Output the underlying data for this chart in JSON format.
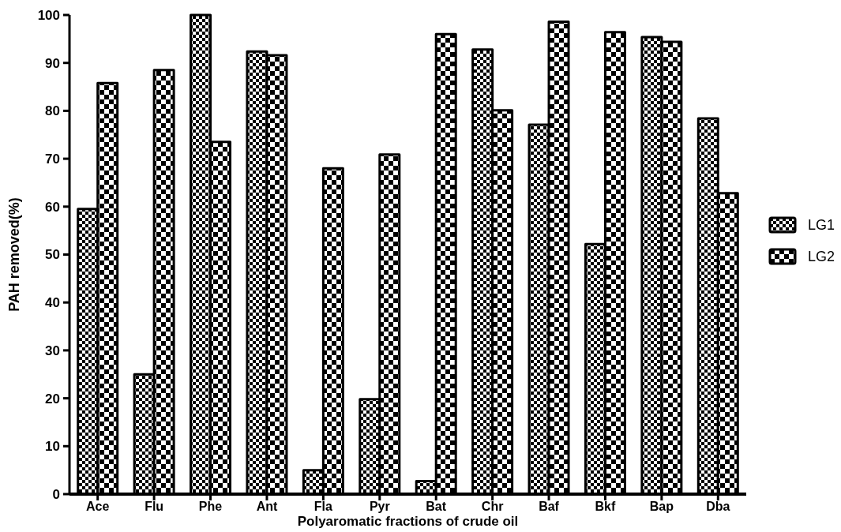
{
  "chart_data": {
    "type": "bar",
    "xlabel": "Polyaromatic fractions of crude oil",
    "ylabel": "PAH removed(%)",
    "categories": [
      "Ace",
      "Flu",
      "Phe",
      "Ant",
      "Fla",
      "Pyr",
      "Bat",
      "Chr",
      "Baf",
      "Bkf",
      "Bap",
      "Dba"
    ],
    "series": [
      {
        "name": "LG1",
        "color": "#000000",
        "values": [
          59.5,
          25,
          100,
          92.4,
          5,
          19.8,
          2.7,
          92.8,
          77.1,
          52.2,
          95.4,
          78.4
        ]
      },
      {
        "name": "LG2",
        "color": "#000000",
        "values": [
          85.8,
          88.5,
          73.5,
          91.6,
          68,
          70.9,
          96,
          80.1,
          98.6,
          96.4,
          94.4,
          62.8
        ]
      }
    ],
    "ylim": [
      0,
      100
    ],
    "yticks": [
      0,
      10,
      20,
      30,
      40,
      50,
      60,
      70,
      80,
      90,
      100
    ],
    "grid": false,
    "legend": "right"
  }
}
